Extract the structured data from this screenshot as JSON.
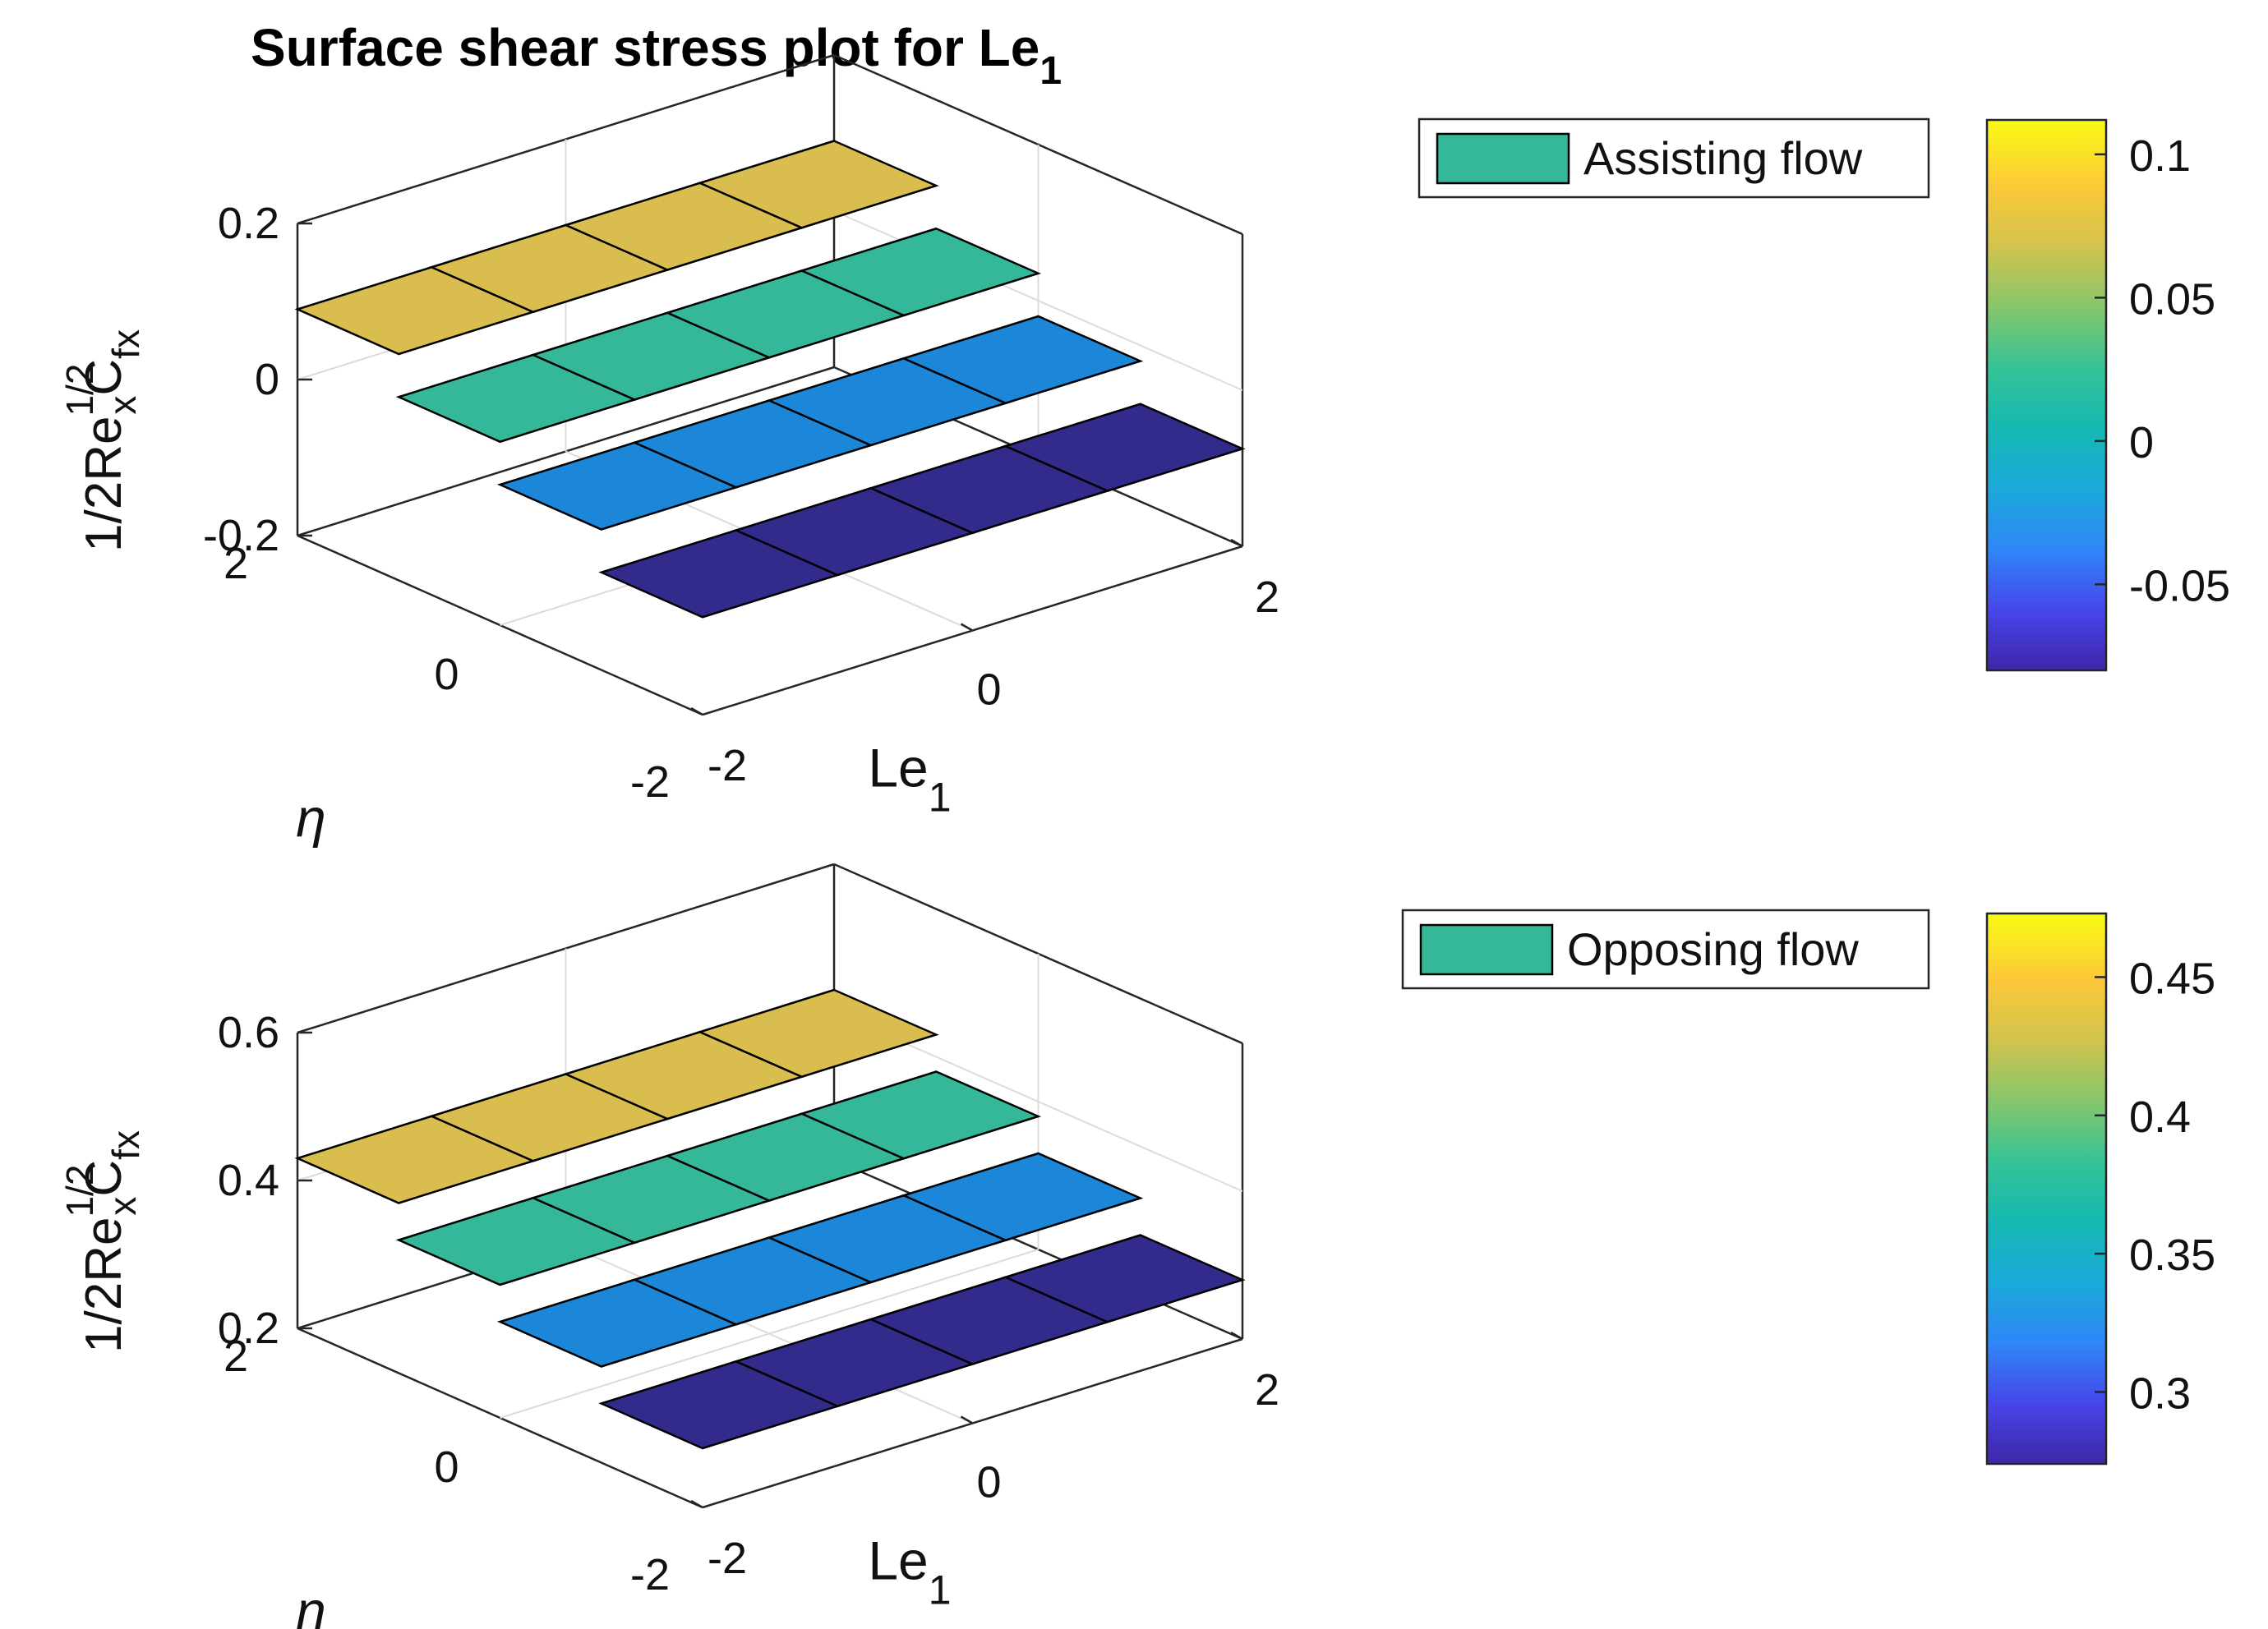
{
  "chart_data": {
    "type": "surface3d",
    "title": "Surface shear stress plot for Le",
    "title_subscript": "1",
    "colormap": "parula",
    "colormap_colors": [
      "#3e26a8",
      "#4746eb",
      "#2e87f7",
      "#1ba9da",
      "#15b8b2",
      "#36c396",
      "#86c66b",
      "#d2c34e",
      "#fcc838",
      "#f9fb15"
    ],
    "panels": [
      {
        "legend": "Assisting flow",
        "legend_swatch_color": "#35b799",
        "xlabel": "Le",
        "xlabel_subscript": "1",
        "ylabel_symbol": "η",
        "zlabel": {
          "base": "1/2Re",
          "sup1": "1/2",
          "sub1": "x",
          "main2": "C",
          "sub2": "fx"
        },
        "x_ticks": [
          "-2",
          "0",
          "2"
        ],
        "y_ticks": [
          "2",
          "0",
          "-2"
        ],
        "z_ticks": [
          "0.2",
          "0",
          "-0.2"
        ],
        "zlim": [
          -0.2,
          0.2
        ],
        "x_values": [
          -2,
          -1,
          0,
          1,
          2
        ],
        "y_values": [
          -2,
          -1,
          0,
          1,
          2
        ],
        "band_values": [
          -0.075,
          -0.02,
          0.035,
          0.09
        ],
        "band_colors": [
          "#322b8c",
          "#1c87d8",
          "#35b899",
          "#d9bd4e"
        ],
        "colorbar_ticks": [
          "0.1",
          "0.05",
          "0",
          "-0.05"
        ],
        "colorbar_range": [
          -0.08,
          0.112
        ]
      },
      {
        "legend": "Opposing flow",
        "legend_swatch_color": "#35b799",
        "xlabel": "Le",
        "xlabel_subscript": "1",
        "ylabel_symbol": "η",
        "zlabel": {
          "base": "1/2Re",
          "sup1": "1/2",
          "sub1": "x",
          "main2": "C",
          "sub2": "fx"
        },
        "x_ticks": [
          "-2",
          "0",
          "2"
        ],
        "y_ticks": [
          "2",
          "0",
          "-2"
        ],
        "z_ticks": [
          "0.6",
          "0.4",
          "0.2"
        ],
        "zlim": [
          0.2,
          0.6
        ],
        "x_values": [
          -2,
          -1,
          0,
          1,
          2
        ],
        "y_values": [
          -2,
          -1,
          0,
          1,
          2
        ],
        "band_values": [
          0.28,
          0.33,
          0.38,
          0.43
        ],
        "band_colors": [
          "#322b8c",
          "#1c87d8",
          "#35b899",
          "#d9bd4e"
        ],
        "colorbar_ticks": [
          "0.45",
          "0.4",
          "0.35",
          "0.3"
        ],
        "colorbar_range": [
          0.274,
          0.473
        ]
      }
    ]
  }
}
